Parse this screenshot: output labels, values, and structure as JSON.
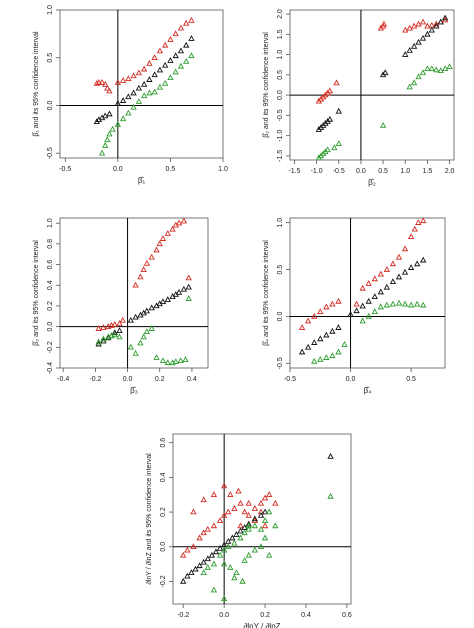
{
  "colors": {
    "upper": "#d42a20",
    "estimate": "#111111",
    "lower": "#2e9e2e",
    "axis": "#000000",
    "frame": "#555555"
  },
  "chart_data": [
    {
      "type": "scatter",
      "xlabel": "β̂₁",
      "ylabel": "β̂₁ and its 95% confidence interval",
      "xlim": [
        -0.55,
        1.0
      ],
      "ylim": [
        -0.55,
        1.0
      ],
      "xticks": [
        "-0.5",
        "0.0",
        "0.5",
        "1.0"
      ],
      "xtick_values": [
        -0.5,
        0.0,
        0.5,
        1.0
      ],
      "yticks": [
        "-0.5",
        "0.0",
        "0.5",
        "1.0"
      ],
      "ytick_values": [
        -0.5,
        0.0,
        0.5,
        1.0
      ],
      "grid": false,
      "reference_lines": {
        "x": 0,
        "y": 0
      },
      "series": [
        {
          "role": "upper",
          "color": "#d42a20",
          "x": [
            -0.2,
            -0.18,
            -0.15,
            -0.12,
            -0.1,
            -0.08,
            0.0,
            0.05,
            0.1,
            0.15,
            0.2,
            0.25,
            0.3,
            0.35,
            0.4,
            0.45,
            0.5,
            0.55,
            0.6,
            0.65,
            0.7
          ],
          "y": [
            0.23,
            0.24,
            0.24,
            0.22,
            0.18,
            0.15,
            0.24,
            0.26,
            0.28,
            0.31,
            0.34,
            0.38,
            0.44,
            0.5,
            0.57,
            0.63,
            0.69,
            0.75,
            0.81,
            0.86,
            0.89
          ]
        },
        {
          "role": "estimate",
          "color": "#111111",
          "x": [
            -0.2,
            -0.18,
            -0.15,
            -0.12,
            -0.08,
            0.0,
            0.05,
            0.1,
            0.15,
            0.2,
            0.25,
            0.3,
            0.35,
            0.4,
            0.45,
            0.5,
            0.55,
            0.6,
            0.65,
            0.7
          ],
          "y": [
            -0.17,
            -0.15,
            -0.13,
            -0.11,
            -0.09,
            0.02,
            0.05,
            0.09,
            0.13,
            0.18,
            0.22,
            0.27,
            0.32,
            0.37,
            0.42,
            0.47,
            0.52,
            0.57,
            0.63,
            0.7
          ]
        },
        {
          "role": "lower",
          "color": "#2e9e2e",
          "x": [
            -0.15,
            -0.12,
            -0.1,
            -0.08,
            -0.05,
            0.0,
            0.05,
            0.1,
            0.15,
            0.2,
            0.25,
            0.3,
            0.35,
            0.4,
            0.45,
            0.5,
            0.55,
            0.6,
            0.65,
            0.7
          ],
          "y": [
            -0.5,
            -0.42,
            -0.36,
            -0.3,
            -0.25,
            -0.2,
            -0.14,
            -0.08,
            -0.02,
            0.04,
            0.1,
            0.13,
            0.14,
            0.19,
            0.23,
            0.29,
            0.35,
            0.41,
            0.46,
            0.52
          ]
        }
      ]
    },
    {
      "type": "scatter",
      "xlabel": "β̂₂",
      "ylabel": "β̂₂ and its 95% confidence interval",
      "xlim": [
        -1.6,
        2.1
      ],
      "ylim": [
        -1.6,
        2.1
      ],
      "xticks": [
        "-1.5",
        "-1.0",
        "-0.5",
        "0.0",
        "0.5",
        "1.0",
        "1.5",
        "2.0"
      ],
      "xtick_values": [
        -1.5,
        -1.0,
        -0.5,
        0.0,
        0.5,
        1.0,
        1.5,
        2.0
      ],
      "yticks": [
        "-1.5",
        "-1.0",
        "-0.5",
        "0.0",
        "0.5",
        "1.0",
        "1.5",
        "2.0"
      ],
      "ytick_values": [
        -1.5,
        -1.0,
        -0.5,
        0.0,
        0.5,
        1.0,
        1.5,
        2.0
      ],
      "grid": false,
      "reference_lines": {
        "x": 0,
        "y": 0
      },
      "series": [
        {
          "role": "upper",
          "color": "#d42a20",
          "x": [
            -0.95,
            -0.9,
            -0.85,
            -0.8,
            -0.75,
            -0.7,
            -0.55,
            0.45,
            0.5,
            0.52,
            1.0,
            1.1,
            1.2,
            1.3,
            1.4,
            1.5,
            1.6,
            1.7,
            1.8,
            1.9
          ],
          "y": [
            -0.15,
            -0.1,
            -0.05,
            0.0,
            0.05,
            0.1,
            0.3,
            1.65,
            1.7,
            1.75,
            1.6,
            1.65,
            1.7,
            1.75,
            1.8,
            1.7,
            1.72,
            1.75,
            1.8,
            1.85
          ]
        },
        {
          "role": "estimate",
          "color": "#111111",
          "x": [
            -0.95,
            -0.9,
            -0.85,
            -0.8,
            -0.75,
            -0.7,
            -0.5,
            0.5,
            0.55,
            1.0,
            1.1,
            1.2,
            1.3,
            1.4,
            1.5,
            1.6,
            1.7,
            1.8,
            1.9
          ],
          "y": [
            -0.85,
            -0.8,
            -0.75,
            -0.7,
            -0.65,
            -0.6,
            -0.4,
            0.5,
            0.55,
            1.0,
            1.1,
            1.2,
            1.3,
            1.4,
            1.5,
            1.6,
            1.7,
            1.8,
            1.9
          ]
        },
        {
          "role": "lower",
          "color": "#2e9e2e",
          "x": [
            -0.95,
            -0.9,
            -0.85,
            -0.8,
            -0.75,
            -0.6,
            -0.5,
            0.5,
            1.1,
            1.2,
            1.3,
            1.4,
            1.5,
            1.6,
            1.7,
            1.8,
            1.9,
            2.0
          ],
          "y": [
            -1.55,
            -1.5,
            -1.45,
            -1.4,
            -1.35,
            -1.3,
            -1.2,
            -0.75,
            0.2,
            0.3,
            0.45,
            0.55,
            0.65,
            0.65,
            0.62,
            0.6,
            0.65,
            0.7
          ]
        }
      ]
    },
    {
      "type": "scatter",
      "xlabel": "β̂₃",
      "ylabel": "β̂₃ and its 95% confidence interval",
      "xlim": [
        -0.42,
        0.5
      ],
      "ylim": [
        -0.4,
        1.05
      ],
      "xticks": [
        "-0.4",
        "-0.2",
        "0.0",
        "0.2",
        "0.4"
      ],
      "xtick_values": [
        -0.4,
        -0.2,
        0.0,
        0.2,
        0.4
      ],
      "yticks": [
        "-0.4",
        "-0.2",
        "0.0",
        "0.2",
        "0.4",
        "0.6",
        "0.8",
        "1.0"
      ],
      "ytick_values": [
        -0.4,
        -0.2,
        0.0,
        0.2,
        0.4,
        0.6,
        0.8,
        1.0
      ],
      "grid": false,
      "reference_lines": {
        "x": 0,
        "y": 0
      },
      "series": [
        {
          "role": "upper",
          "color": "#d42a20",
          "x": [
            -0.18,
            -0.15,
            -0.12,
            -0.1,
            -0.08,
            -0.05,
            -0.03,
            0.05,
            0.08,
            0.1,
            0.12,
            0.15,
            0.18,
            0.2,
            0.22,
            0.25,
            0.28,
            0.3,
            0.32,
            0.35,
            0.38
          ],
          "y": [
            -0.02,
            -0.01,
            0.0,
            0.01,
            0.02,
            0.03,
            0.06,
            0.4,
            0.48,
            0.55,
            0.61,
            0.67,
            0.74,
            0.8,
            0.85,
            0.9,
            0.94,
            0.98,
            1.0,
            1.02,
            0.47
          ]
        },
        {
          "role": "estimate",
          "color": "#111111",
          "x": [
            -0.18,
            -0.15,
            -0.12,
            -0.1,
            -0.08,
            -0.05,
            0.02,
            0.05,
            0.08,
            0.1,
            0.12,
            0.15,
            0.18,
            0.2,
            0.22,
            0.25,
            0.28,
            0.3,
            0.32,
            0.35,
            0.38
          ],
          "y": [
            -0.17,
            -0.14,
            -0.11,
            -0.09,
            -0.06,
            -0.04,
            0.06,
            0.09,
            0.11,
            0.13,
            0.15,
            0.18,
            0.2,
            0.22,
            0.24,
            0.26,
            0.29,
            0.31,
            0.33,
            0.36,
            0.38
          ]
        },
        {
          "role": "lower",
          "color": "#2e9e2e",
          "x": [
            -0.18,
            -0.15,
            -0.12,
            -0.1,
            -0.08,
            -0.05,
            0.02,
            0.05,
            0.08,
            0.1,
            0.12,
            0.15,
            0.18,
            0.22,
            0.25,
            0.28,
            0.3,
            0.33,
            0.36,
            0.38
          ],
          "y": [
            -0.15,
            -0.12,
            -0.1,
            -0.09,
            -0.08,
            -0.1,
            -0.2,
            -0.26,
            -0.16,
            -0.1,
            -0.05,
            -0.02,
            -0.3,
            -0.33,
            -0.35,
            -0.35,
            -0.34,
            -0.33,
            -0.32,
            0.27
          ]
        }
      ]
    },
    {
      "type": "scatter",
      "xlabel": "β̂₄",
      "ylabel": "β̂₄ and its 95% confidence interval",
      "xlim": [
        -0.5,
        0.78
      ],
      "ylim": [
        -0.55,
        1.05
      ],
      "xticks": [
        "-0.5",
        "0.0",
        "0.5"
      ],
      "xtick_values": [
        -0.5,
        0.0,
        0.5
      ],
      "yticks": [
        "-0.5",
        "0.0",
        "0.5",
        "1.0"
      ],
      "ytick_values": [
        -0.5,
        0.0,
        0.5,
        1.0
      ],
      "grid": false,
      "reference_lines": {
        "x": 0,
        "y": 0
      },
      "series": [
        {
          "role": "upper",
          "color": "#d42a20",
          "x": [
            -0.4,
            -0.35,
            -0.3,
            -0.25,
            -0.2,
            -0.15,
            -0.1,
            0.05,
            0.1,
            0.15,
            0.2,
            0.25,
            0.3,
            0.35,
            0.4,
            0.45,
            0.5,
            0.53,
            0.56,
            0.6
          ],
          "y": [
            -0.12,
            -0.05,
            0.0,
            0.05,
            0.1,
            0.13,
            0.16,
            0.13,
            0.3,
            0.35,
            0.4,
            0.45,
            0.5,
            0.56,
            0.63,
            0.72,
            0.85,
            0.93,
            1.0,
            1.02
          ]
        },
        {
          "role": "estimate",
          "color": "#111111",
          "x": [
            -0.4,
            -0.35,
            -0.3,
            -0.25,
            -0.2,
            -0.15,
            -0.1,
            0.0,
            0.05,
            0.1,
            0.15,
            0.2,
            0.25,
            0.3,
            0.35,
            0.4,
            0.45,
            0.5,
            0.55,
            0.6
          ],
          "y": [
            -0.38,
            -0.33,
            -0.28,
            -0.24,
            -0.2,
            -0.16,
            -0.12,
            0.02,
            0.06,
            0.11,
            0.16,
            0.21,
            0.26,
            0.31,
            0.37,
            0.42,
            0.47,
            0.52,
            0.56,
            0.6
          ]
        },
        {
          "role": "lower",
          "color": "#2e9e2e",
          "x": [
            -0.3,
            -0.25,
            -0.2,
            -0.15,
            -0.1,
            -0.05,
            0.1,
            0.15,
            0.2,
            0.25,
            0.3,
            0.35,
            0.4,
            0.45,
            0.5,
            0.55,
            0.6
          ],
          "y": [
            -0.48,
            -0.46,
            -0.44,
            -0.42,
            -0.38,
            -0.3,
            -0.05,
            0.0,
            0.05,
            0.1,
            0.12,
            0.13,
            0.14,
            0.13,
            0.12,
            0.13,
            0.12
          ]
        }
      ]
    },
    {
      "type": "scatter",
      "xlabel": "∂lnY / ∂lnZ",
      "ylabel": "∂lnY / ∂lnZ and its 95% confidence interval",
      "xlim": [
        -0.25,
        0.62
      ],
      "ylim": [
        -0.33,
        0.65
      ],
      "xticks": [
        "-0.2",
        "0.0",
        "0.2",
        "0.4",
        "0.6"
      ],
      "xtick_values": [
        -0.2,
        0.0,
        0.2,
        0.4,
        0.6
      ],
      "yticks": [
        "-0.2",
        "0.0",
        "0.2",
        "0.4",
        "0.6"
      ],
      "ytick_values": [
        -0.2,
        0.0,
        0.2,
        0.4,
        0.6
      ],
      "grid": false,
      "reference_lines": {
        "x": 0,
        "y": 0
      },
      "series": [
        {
          "role": "upper",
          "color": "#d42a20",
          "x": [
            -0.2,
            -0.18,
            -0.15,
            -0.12,
            -0.1,
            -0.08,
            -0.05,
            -0.02,
            0.0,
            0.02,
            0.05,
            0.08,
            0.1,
            0.12,
            0.15,
            0.18,
            0.2,
            0.22,
            -0.15,
            -0.1,
            -0.05,
            0.0,
            0.03,
            0.07,
            0.12,
            0.15,
            0.2,
            0.25,
            0.08,
            0.18
          ],
          "y": [
            -0.05,
            -0.02,
            0.0,
            0.05,
            0.08,
            0.1,
            0.12,
            0.15,
            0.18,
            0.2,
            0.22,
            0.25,
            0.2,
            0.18,
            0.22,
            0.25,
            0.28,
            0.3,
            0.2,
            0.27,
            0.3,
            0.35,
            0.3,
            0.32,
            0.25,
            0.15,
            0.12,
            0.25,
            0.12,
            0.2
          ]
        },
        {
          "role": "estimate",
          "color": "#111111",
          "x": [
            -0.2,
            -0.18,
            -0.16,
            -0.14,
            -0.12,
            -0.1,
            -0.08,
            -0.06,
            -0.04,
            -0.02,
            0.0,
            0.02,
            0.04,
            0.06,
            0.08,
            0.1,
            0.12,
            0.15,
            0.18,
            0.2,
            0.52
          ],
          "y": [
            -0.2,
            -0.17,
            -0.15,
            -0.13,
            -0.11,
            -0.09,
            -0.07,
            -0.05,
            -0.03,
            -0.01,
            0.01,
            0.03,
            0.05,
            0.07,
            0.09,
            0.11,
            0.13,
            0.16,
            0.18,
            0.2,
            0.52
          ]
        },
        {
          "role": "lower",
          "color": "#2e9e2e",
          "x": [
            -0.1,
            -0.08,
            -0.05,
            -0.02,
            0.0,
            0.02,
            0.05,
            0.08,
            0.1,
            0.12,
            0.15,
            0.18,
            0.2,
            0.22,
            0.25,
            0.0,
            0.03,
            0.06,
            0.09,
            0.12,
            0.15,
            0.18,
            0.2,
            -0.05,
            0.0,
            0.05,
            0.1,
            0.52,
            0.22,
            0.12
          ],
          "y": [
            -0.15,
            -0.12,
            -0.1,
            -0.05,
            -0.02,
            0.0,
            0.02,
            0.05,
            0.08,
            0.1,
            0.12,
            0.1,
            0.15,
            0.2,
            0.12,
            -0.1,
            -0.12,
            -0.15,
            -0.2,
            -0.05,
            -0.02,
            0.0,
            0.05,
            -0.25,
            -0.3,
            -0.18,
            -0.08,
            0.29,
            -0.05,
            0.12
          ]
        }
      ]
    }
  ]
}
